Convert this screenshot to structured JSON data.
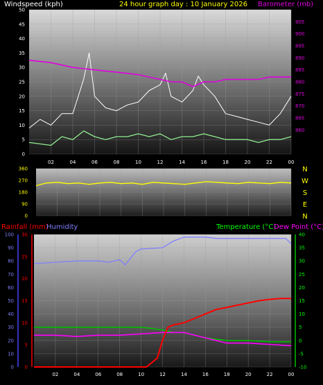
{
  "header": {
    "windspeed_label": "Windspeed (kph)",
    "title": "24 hour graph day : 10 January 2026",
    "barometer_label": "Barometer (mb)"
  },
  "colors": {
    "background": "#000000",
    "windspeed": "#ffffff",
    "wind_avg": "#90ee90",
    "barometer": "#e000e0",
    "direction": "#ffff00",
    "rainfall": "#ff0000",
    "humidity": "#8080ff",
    "temperature": "#00c000",
    "dewpoint": "#ff00ff",
    "title": "#ffff00",
    "temp_label": "#00ff00"
  },
  "bottom_labels": {
    "rainfall": "Rainfall (mm)",
    "humidity": "Humidity",
    "temperature": "Temperature (°C)",
    "dewpoint": "Dew Point (°C)"
  },
  "compass": [
    "N",
    "W",
    "S",
    "E",
    "N"
  ],
  "chart_data": [
    {
      "type": "line",
      "name": "wind-barometer",
      "x_ticks": [
        "02",
        "04",
        "06",
        "08",
        "10",
        "12",
        "14",
        "16",
        "18",
        "20",
        "22",
        "00"
      ],
      "ylabel_left": "Windspeed (kph)",
      "ylim_left": [
        0,
        50
      ],
      "yticks_left": [
        0,
        5,
        10,
        15,
        20,
        25,
        30,
        35,
        40,
        45,
        50
      ],
      "ylabel_right": "Barometer (mb)",
      "ylim_right": [
        850,
        910
      ],
      "yticks_right": [
        860,
        865,
        870,
        875,
        880,
        885,
        890,
        895,
        900,
        905
      ],
      "series": [
        {
          "key": "gust",
          "x": [
            0,
            1,
            2,
            3,
            4,
            5,
            5.5,
            6,
            7,
            8,
            9,
            10,
            11,
            12,
            12.5,
            13,
            14,
            15,
            15.5,
            16,
            17,
            18,
            19,
            20,
            21,
            22,
            23,
            24
          ],
          "values": [
            9,
            12,
            10,
            14,
            14,
            26,
            35,
            20,
            16,
            15,
            17,
            18,
            22,
            24,
            28,
            20,
            18,
            22,
            27,
            24,
            20,
            14,
            13,
            12,
            11,
            10,
            14,
            20
          ]
        },
        {
          "key": "average",
          "x": [
            0,
            2,
            3,
            4,
            5,
            6,
            7,
            8,
            9,
            10,
            11,
            12,
            13,
            14,
            15,
            16,
            17,
            18,
            19,
            20,
            21,
            22,
            23,
            24
          ],
          "values": [
            4,
            3,
            6,
            5,
            8,
            6,
            5,
            6,
            6,
            7,
            6,
            7,
            5,
            6,
            6,
            7,
            6,
            5,
            5,
            5,
            4,
            5,
            5,
            6
          ]
        },
        {
          "key": "barometer",
          "axis": "right",
          "x": [
            0,
            2,
            4,
            6,
            8,
            10,
            12,
            13,
            14,
            15,
            16,
            17,
            18,
            19,
            20,
            21,
            22,
            23,
            24
          ],
          "values": [
            889,
            888,
            886,
            885,
            884,
            883,
            881,
            880,
            880,
            878,
            880,
            880,
            881,
            881,
            881,
            881,
            882,
            882,
            882
          ]
        }
      ]
    },
    {
      "type": "line",
      "name": "wind-direction",
      "ylim": [
        0,
        360
      ],
      "yticks": [
        0,
        90,
        180,
        270,
        360
      ],
      "x": [
        0,
        1,
        2,
        3,
        4,
        5,
        6,
        7,
        8,
        9,
        10,
        11,
        12,
        13,
        14,
        15,
        16,
        17,
        18,
        19,
        20,
        21,
        22,
        23,
        24
      ],
      "values": [
        230,
        250,
        255,
        245,
        250,
        240,
        250,
        255,
        245,
        250,
        240,
        255,
        250,
        245,
        240,
        250,
        260,
        255,
        250,
        245,
        255,
        250,
        245,
        255,
        250
      ]
    },
    {
      "type": "line",
      "name": "rain-humidity-temp",
      "ylabel_far_left": "Humidity",
      "ylim_humidity": [
        0,
        100
      ],
      "yticks_humidity": [
        0,
        10,
        20,
        30,
        40,
        50,
        60,
        70,
        80,
        90,
        100
      ],
      "ylabel_left": "Rainfall (mm)",
      "ylim_rain": [
        0,
        30
      ],
      "yticks_rain": [
        0,
        5,
        10,
        15,
        20,
        25,
        30
      ],
      "ylabel_right": "Temperature (°C)",
      "ylim_temp": [
        -10,
        40
      ],
      "yticks_temp": [
        -10,
        -5,
        0,
        5,
        10,
        15,
        20,
        25,
        30,
        35,
        40
      ],
      "series": [
        {
          "key": "humidity",
          "x": [
            0,
            2,
            4,
            6,
            7,
            8,
            8.5,
            9,
            9.5,
            10,
            12,
            13,
            14,
            15,
            16,
            17,
            18,
            19,
            20,
            21,
            22,
            23,
            23.5,
            24
          ],
          "values": [
            78,
            79,
            80,
            80,
            79,
            81,
            77,
            82,
            87,
            89,
            90,
            95,
            98,
            98,
            98,
            97,
            97,
            97,
            97,
            97,
            97,
            97,
            97,
            93
          ]
        },
        {
          "key": "rainfall",
          "x": [
            0,
            10.5,
            11.5,
            12,
            12.5,
            13,
            14,
            15,
            16,
            17,
            18,
            19,
            20,
            21,
            22,
            23,
            24
          ],
          "values": [
            0,
            0,
            2,
            6,
            9,
            9.5,
            10,
            11,
            12,
            13,
            13.5,
            14,
            14.5,
            15,
            15.3,
            15.5,
            15.5
          ]
        },
        {
          "key": "temperature",
          "x": [
            0,
            2,
            4,
            6,
            8,
            9,
            10,
            12,
            13,
            14,
            15,
            16,
            17,
            18,
            20,
            22,
            24
          ],
          "values": [
            5,
            5,
            5,
            5,
            5,
            5,
            5,
            4,
            3,
            3,
            2,
            1,
            0.5,
            0,
            0,
            -0.5,
            -0.5
          ]
        },
        {
          "key": "dewpoint",
          "x": [
            0,
            2,
            4,
            6,
            8,
            10,
            12,
            13,
            14,
            15,
            16,
            17,
            18,
            20,
            22,
            24
          ],
          "values": [
            2,
            2,
            1.5,
            2,
            2,
            2.5,
            3,
            3,
            3,
            2,
            1,
            0,
            -1,
            -1,
            -1.5,
            -2
          ]
        }
      ]
    }
  ]
}
